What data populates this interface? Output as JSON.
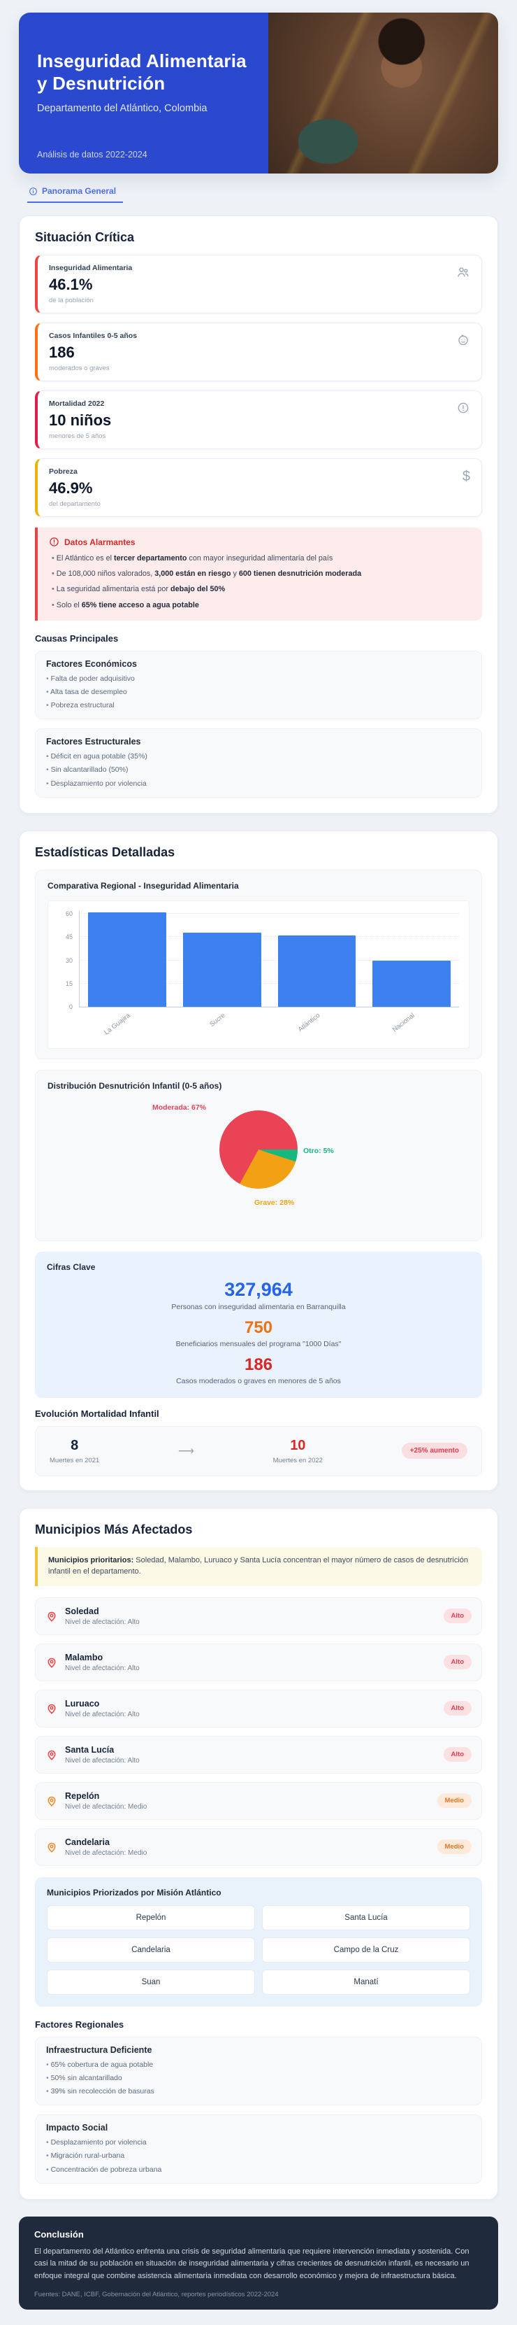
{
  "header": {
    "title": "Inseguridad Alimentaria y Desnutrición",
    "subtitle": "Departamento del Atlántico, Colombia",
    "period": "Análisis de datos 2022-2024"
  },
  "tab": {
    "label": "Panorama General"
  },
  "situacion": {
    "title": "Situación Crítica",
    "stats": [
      {
        "label": "Inseguridad Alimentaria",
        "value": "46.1%",
        "sub": "de la población",
        "accent": "#ef4444",
        "icon": "users-icon"
      },
      {
        "label": "Casos Infantiles 0-5 años",
        "value": "186",
        "sub": "moderados o graves",
        "accent": "#f97316",
        "icon": "baby-face-icon"
      },
      {
        "label": "Mortalidad 2022",
        "value": "10 niños",
        "sub": "menores de 5 años",
        "accent": "#e11d48",
        "icon": "alert-circle-icon"
      },
      {
        "label": "Pobreza",
        "value": "46.9%",
        "sub": "del departamento",
        "accent": "#eab308",
        "icon": "dollar-icon"
      }
    ],
    "alert": {
      "title": "Datos Alarmantes",
      "items": [
        [
          {
            "t": "El Atlántico es el "
          },
          {
            "t": "tercer departamento",
            "b": true
          },
          {
            "t": " con mayor inseguridad alimentaria del país"
          }
        ],
        [
          {
            "t": "De 108,000 niños valorados, "
          },
          {
            "t": "3,000 están en riesgo",
            "b": true
          },
          {
            "t": " y "
          },
          {
            "t": "600 tienen desnutrición moderada",
            "b": true
          }
        ],
        [
          {
            "t": "La seguridad alimentaria está por "
          },
          {
            "t": "debajo del 50%",
            "b": true
          }
        ],
        [
          {
            "t": "Solo el "
          },
          {
            "t": "65% tiene acceso a agua potable",
            "b": true
          }
        ]
      ]
    },
    "causas": {
      "title": "Causas Principales",
      "boxes": [
        {
          "title": "Factores Económicos",
          "items": [
            "Falta de poder adquisitivo",
            "Alta tasa de desempleo",
            "Pobreza estructural"
          ]
        },
        {
          "title": "Factores Estructurales",
          "items": [
            "Déficit en agua potable (35%)",
            "Sin alcantarillado (50%)",
            "Desplazamiento por violencia"
          ]
        }
      ]
    }
  },
  "estadisticas": {
    "title": "Estadísticas Detalladas",
    "cifras": {
      "title": "Cifras Clave",
      "items": [
        {
          "value": "327,964",
          "label": "Personas con inseguridad alimentaria en Barranquilla",
          "color": "#2563eb"
        },
        {
          "value": "750",
          "label": "Beneficiarios mensuales del programa \"1000 Días\"",
          "color": "#ea7317"
        },
        {
          "value": "186",
          "label": "Casos moderados o graves en menores de 5 años",
          "color": "#dc2626"
        }
      ]
    },
    "evolucion": {
      "title": "Evolución Mortalidad Infantil",
      "from_value": "8",
      "from_label": "Muertes en 2021",
      "arrow": "⟶",
      "to_value": "10",
      "to_label": "Muertes en 2022",
      "badge": "+25% aumento"
    }
  },
  "chart_data": [
    {
      "type": "bar",
      "title": "Comparativa Regional - Inseguridad Alimentaria",
      "categories": [
        "La Guajira",
        "Sucre",
        "Atlántico",
        "Nacional"
      ],
      "values": [
        61,
        48,
        46.1,
        30
      ],
      "xlabel": "",
      "ylabel": "",
      "ylim": [
        0,
        62
      ],
      "yticks": [
        0,
        15,
        30,
        45,
        60
      ],
      "bar_color": "#3d80f0",
      "grid": "dotted horizontal",
      "legend": "none"
    },
    {
      "type": "pie",
      "title": "Distribución Desnutrición Infantil (0-5 años)",
      "slices": [
        {
          "label": "Moderada",
          "value": 67,
          "color": "#ea4355"
        },
        {
          "label": "Grave",
          "value": 28,
          "color": "#f2a114"
        },
        {
          "label": "Otro",
          "value": 5,
          "color": "#17b87e"
        }
      ],
      "start_deg": 90,
      "direction": "clockwise",
      "render_order": [
        2,
        1,
        0
      ],
      "legend": "labels around pie"
    }
  ],
  "municipios": {
    "title": "Municipios Más Afectados",
    "note_bold": "Municipios prioritarios:",
    "note_text": " Soledad, Malambo, Luruaco y Santa Lucía concentran el mayor número de casos de desnutrición infantil en el departamento.",
    "list": [
      {
        "name": "Soledad",
        "sub": "Nivel de afectación: Alto",
        "badge": "Alto",
        "level": "alto"
      },
      {
        "name": "Malambo",
        "sub": "Nivel de afectación: Alto",
        "badge": "Alto",
        "level": "alto"
      },
      {
        "name": "Luruaco",
        "sub": "Nivel de afectación: Alto",
        "badge": "Alto",
        "level": "alto"
      },
      {
        "name": "Santa Lucía",
        "sub": "Nivel de afectación: Alto",
        "badge": "Alto",
        "level": "alto"
      },
      {
        "name": "Repelón",
        "sub": "Nivel de afectación: Medio",
        "badge": "Medio",
        "level": "medio"
      },
      {
        "name": "Candelaria",
        "sub": "Nivel de afectación: Medio",
        "badge": "Medio",
        "level": "medio"
      }
    ],
    "priorizados": {
      "title": "Municipios Priorizados por Misión Atlántico",
      "cells": [
        "Repelón",
        "Santa Lucía",
        "Candelaria",
        "Campo de la Cruz",
        "Suan",
        "Manatí"
      ]
    },
    "factores": {
      "title": "Factores Regionales",
      "boxes": [
        {
          "title": "Infraestructura Deficiente",
          "items": [
            "65% cobertura de agua potable",
            "50% sin alcantarillado",
            "39% sin recolección de basuras"
          ]
        },
        {
          "title": "Impacto Social",
          "items": [
            "Desplazamiento por violencia",
            "Migración rural-urbana",
            "Concentración de pobreza urbana"
          ]
        }
      ]
    }
  },
  "conclusion": {
    "title": "Conclusión",
    "text": "El departamento del Atlántico enfrenta una crisis de seguridad alimentaria que requiere intervención inmediata y sostenida. Con casi la mitad de su población en situación de inseguridad alimentaria y cifras crecientes de desnutrición infantil, es necesario un enfoque integral que combine asistencia alimentaria inmediata con desarrollo económico y mejora de infraestructura básica.",
    "sources": "Fuentes: DANE, ICBF, Gobernación del Atlántico, reportes periodísticos 2022-2024"
  },
  "colors": {
    "header_bg": "#2b49cf",
    "accent_blue": "#4a6cf0",
    "alert_bg": "#fdeceb",
    "alert_red": "#dc2626",
    "badge_alto_bg": "#fde0e2",
    "badge_alto_text": "#e23b4e",
    "badge_medio_bg": "#feeada",
    "badge_medio_text": "#ec7420",
    "conclusion_bg": "#1f2a3c"
  }
}
